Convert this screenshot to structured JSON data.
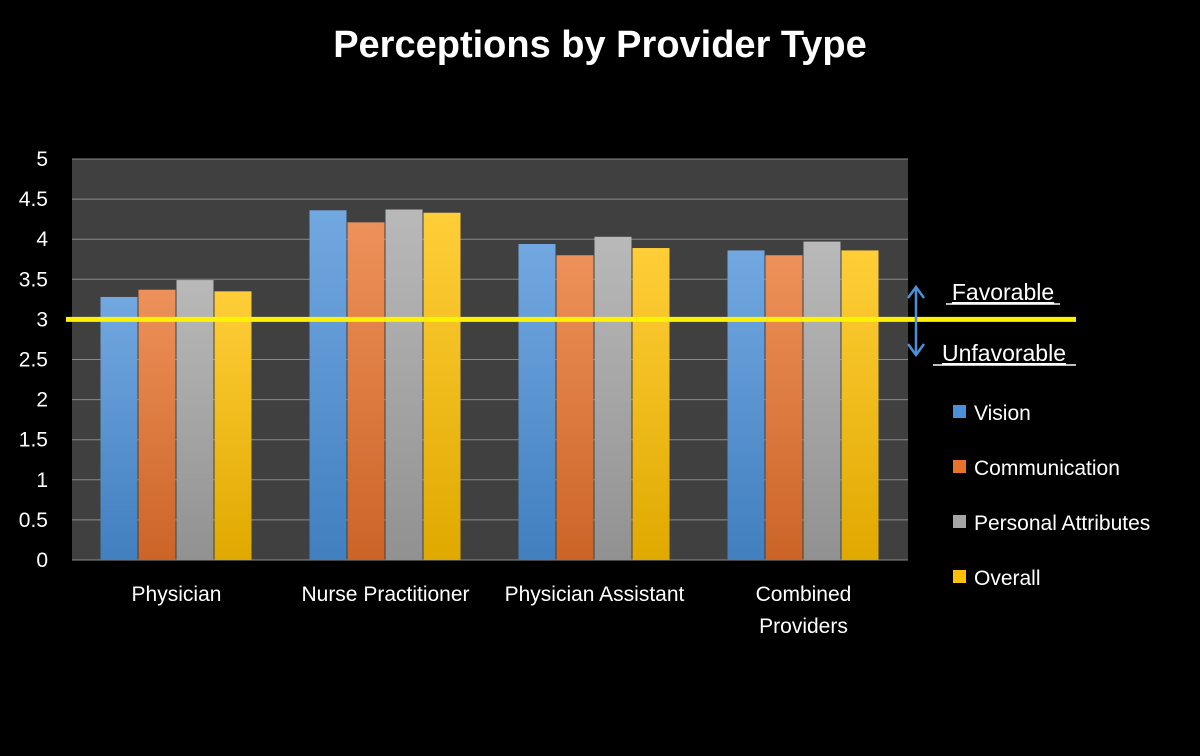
{
  "chart_data": {
    "type": "bar",
    "title": "Perceptions by Provider Type",
    "xlabel": "",
    "ylabel": "",
    "ylim": [
      0,
      5
    ],
    "yticks": [
      "0",
      "0.5",
      "1",
      "1.5",
      "2",
      "2.5",
      "3",
      "3.5",
      "4",
      "4.5",
      "5"
    ],
    "grid": true,
    "legend_position": "right",
    "categories": [
      [
        "Physician"
      ],
      [
        "Nurse Practitioner"
      ],
      [
        "Physician Assistant"
      ],
      [
        "Combined",
        "Providers"
      ]
    ],
    "series": [
      {
        "name": "Vision",
        "color": "#4A90D9",
        "values": [
          3.28,
          4.36,
          3.94,
          3.86
        ]
      },
      {
        "name": "Communication",
        "color": "#E8722C",
        "values": [
          3.37,
          4.21,
          3.8,
          3.8
        ]
      },
      {
        "name": "Personal Attributes",
        "color": "#A5A5A5",
        "values": [
          3.49,
          4.37,
          4.03,
          3.97
        ]
      },
      {
        "name": "Overall",
        "color": "#FFC000",
        "values": [
          3.35,
          4.33,
          3.89,
          3.86
        ]
      }
    ],
    "reference_line": {
      "value": 3,
      "color": "#FFF200"
    },
    "annotations": {
      "above": "Favorable",
      "below": "Unfavorable"
    }
  }
}
